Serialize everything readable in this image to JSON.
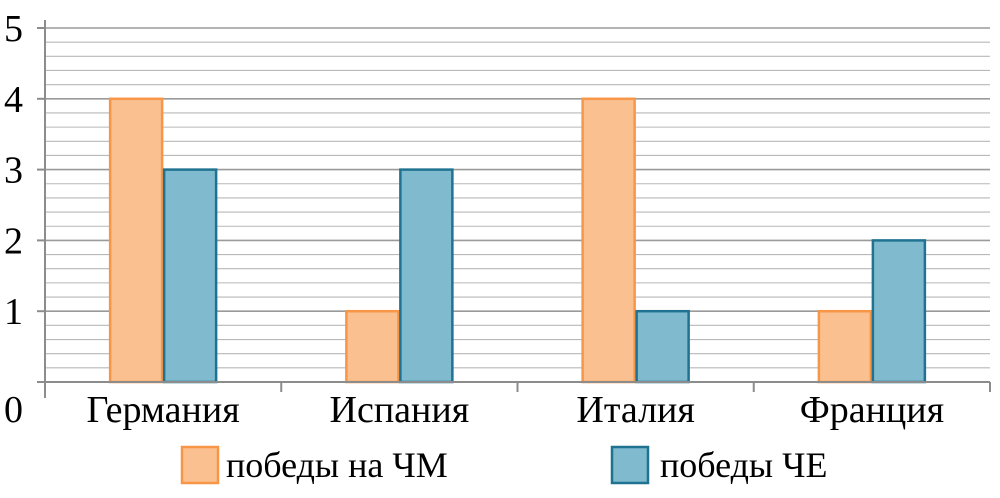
{
  "chart_data": {
    "type": "bar",
    "categories": [
      "Германия",
      "Испания",
      "Италия",
      "Франция"
    ],
    "series": [
      {
        "name": "победы на ЧМ",
        "values": [
          4,
          1,
          4,
          1
        ],
        "fill": "#FAC090",
        "stroke": "#F79646"
      },
      {
        "name": "победы ЧЕ",
        "values": [
          3,
          3,
          1,
          2
        ],
        "fill": "#7FBACE",
        "stroke": "#1F7391"
      }
    ],
    "y_ticks": [
      "0",
      "1",
      "2",
      "3",
      "4",
      "5"
    ],
    "ylim": [
      0,
      5
    ],
    "grid": true,
    "legend": "bottom"
  }
}
